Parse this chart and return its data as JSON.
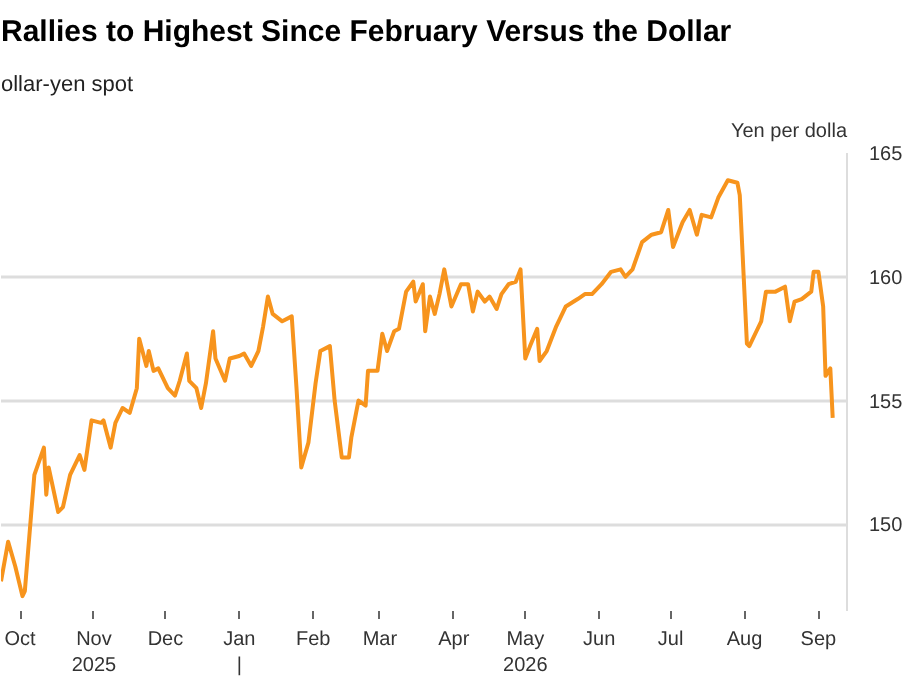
{
  "chart_data": {
    "type": "line",
    "title": "Rallies to Highest Since February Versus the Dollar",
    "subtitle": "ollar-yen spot",
    "ylabel": "Yen per dolla",
    "x": [
      "2025-09-23",
      "2025-09-26",
      "2025-09-29",
      "2025-10-02",
      "2025-10-03",
      "2025-10-07",
      "2025-10-11",
      "2025-10-12",
      "2025-10-13",
      "2025-10-17",
      "2025-10-19",
      "2025-10-22",
      "2025-10-26",
      "2025-10-28",
      "2025-10-31",
      "2025-11-04",
      "2025-11-05",
      "2025-11-08",
      "2025-11-10",
      "2025-11-13",
      "2025-11-16",
      "2025-11-19",
      "2025-11-20",
      "2025-11-23",
      "2025-11-24",
      "2025-11-26",
      "2025-11-28",
      "2025-12-02",
      "2025-12-05",
      "2025-12-07",
      "2025-12-10",
      "2025-12-11",
      "2025-12-14",
      "2025-12-16",
      "2025-12-18",
      "2025-12-21",
      "2025-12-22",
      "2025-12-26",
      "2025-12-28",
      "2026-01-01",
      "2026-01-03",
      "2026-01-06",
      "2026-01-09",
      "2026-01-11",
      "2026-01-13",
      "2026-01-15",
      "2026-01-19",
      "2026-01-23",
      "2026-01-25",
      "2026-01-27",
      "2026-01-30",
      "2026-02-02",
      "2026-02-04",
      "2026-02-08",
      "2026-02-10",
      "2026-02-13",
      "2026-02-16",
      "2026-02-17",
      "2026-02-20",
      "2026-02-23",
      "2026-02-24",
      "2026-02-28",
      "2026-03-02",
      "2026-03-04",
      "2026-03-07",
      "2026-03-09",
      "2026-03-12",
      "2026-03-15",
      "2026-03-16",
      "2026-03-19",
      "2026-03-20",
      "2026-03-22",
      "2026-03-24",
      "2026-03-26",
      "2026-03-28",
      "2026-03-31",
      "2026-04-04",
      "2026-04-07",
      "2026-04-09",
      "2026-04-11",
      "2026-04-14",
      "2026-04-16",
      "2026-04-19",
      "2026-04-21",
      "2026-04-24",
      "2026-04-27",
      "2026-04-29",
      "2026-05-01",
      "2026-05-03",
      "2026-05-06",
      "2026-05-07",
      "2026-05-10",
      "2026-05-14",
      "2026-05-18",
      "2026-05-23",
      "2026-05-26",
      "2026-05-29",
      "2026-06-02",
      "2026-06-06",
      "2026-06-10",
      "2026-06-12",
      "2026-06-15",
      "2026-06-19",
      "2026-06-23",
      "2026-06-27",
      "2026-06-30",
      "2026-07-02",
      "2026-07-06",
      "2026-07-09",
      "2026-07-12",
      "2026-07-14",
      "2026-07-18",
      "2026-07-21",
      "2026-07-25",
      "2026-07-29",
      "2026-07-30",
      "2026-08-02",
      "2026-08-03",
      "2026-08-06",
      "2026-08-08",
      "2026-08-10",
      "2026-08-14",
      "2026-08-18",
      "2026-08-20",
      "2026-08-22",
      "2026-08-25",
      "2026-08-29",
      "2026-08-30",
      "2026-09-01",
      "2026-09-03",
      "2026-09-04",
      "2026-09-06",
      "2026-09-07"
    ],
    "series": [
      {
        "color": "#f7941d",
        "values": [
          147.7,
          149.3,
          148.3,
          147.1,
          147.3,
          152.0,
          153.1,
          151.2,
          152.3,
          150.5,
          150.7,
          152.0,
          152.8,
          152.2,
          154.2,
          154.1,
          154.2,
          153.1,
          154.1,
          154.7,
          154.5,
          155.5,
          157.5,
          156.4,
          157.0,
          156.2,
          156.3,
          155.5,
          155.2,
          155.8,
          156.9,
          155.8,
          155.5,
          154.7,
          155.7,
          157.8,
          156.7,
          155.8,
          156.7,
          156.8,
          156.9,
          156.4,
          157.0,
          158.0,
          159.2,
          158.5,
          158.2,
          158.4,
          155.5,
          152.3,
          153.3,
          155.7,
          157.0,
          157.2,
          155.0,
          152.7,
          152.7,
          153.5,
          155.0,
          154.8,
          156.2,
          156.2,
          157.7,
          157.0,
          157.8,
          157.9,
          159.4,
          159.8,
          159.0,
          159.7,
          157.8,
          159.2,
          158.5,
          159.3,
          160.3,
          158.8,
          159.7,
          159.7,
          158.6,
          159.4,
          159.0,
          159.2,
          158.7,
          159.3,
          159.7,
          159.8,
          160.3,
          156.7,
          157.2,
          157.9,
          156.6,
          157.0,
          158.0,
          158.8,
          159.1,
          159.3,
          159.3,
          159.7,
          160.2,
          160.3,
          160.0,
          160.3,
          161.4,
          161.7,
          161.8,
          162.7,
          161.2,
          162.2,
          162.7,
          161.7,
          162.5,
          162.4,
          163.2,
          163.9,
          163.8,
          163.3,
          157.3,
          157.2,
          157.8,
          158.2,
          159.4,
          159.4,
          159.6,
          158.2,
          159.0,
          159.1,
          159.4,
          160.2,
          160.2,
          158.8,
          156.0,
          156.3,
          154.3
        ]
      }
    ],
    "xlim": [
      "2025-09-23",
      "2026-09-13"
    ],
    "xticks": [
      {
        "value": "2025-10-01",
        "label": "Oct"
      },
      {
        "value": "2025-11-01",
        "label": "Nov\n2025"
      },
      {
        "value": "2025-12-01",
        "label": "Dec"
      },
      {
        "value": "2026-01-01",
        "label": "Jan\n|"
      },
      {
        "value": "2026-02-01",
        "label": "Feb"
      },
      {
        "value": "2026-03-01",
        "label": "Mar"
      },
      {
        "value": "2026-04-01",
        "label": "Apr"
      },
      {
        "value": "2026-05-01",
        "label": "May\n2026"
      },
      {
        "value": "2026-06-01",
        "label": "Jun"
      },
      {
        "value": "2026-07-01",
        "label": "Jul"
      },
      {
        "value": "2026-08-01",
        "label": "Aug"
      },
      {
        "value": "2026-09-01",
        "label": "Sep"
      }
    ],
    "ylim": [
      146.5,
      165
    ],
    "yticks": [
      150,
      155,
      160,
      165
    ],
    "grid": "y",
    "marker": "none",
    "line_style": "solid"
  }
}
